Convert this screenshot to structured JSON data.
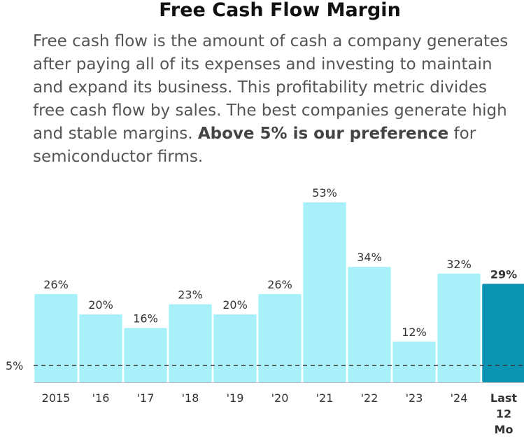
{
  "title": "Free Cash Flow Margin",
  "description": {
    "text_before": "Free cash flow is the amount of cash a company generates after paying all of its expenses and investing to maintain and expand its business. This profitability metric divides free cash flow by sales. The best companies generate high and stable margins. ",
    "bold_text": "Above 5% is our preference",
    "text_after": " for semiconductor firms."
  },
  "colors": {
    "bar": "#a8f0fa",
    "highlight_bar": "#0a93b3",
    "reference_line": "#333333",
    "reference_label": "#3a6e8c"
  },
  "chart_data": {
    "type": "bar",
    "title": "Free Cash Flow Margin",
    "categories": [
      "2015",
      "'16",
      "'17",
      "'18",
      "'19",
      "'20",
      "'21",
      "'22",
      "'23",
      "'24",
      "Last 12 Mo"
    ],
    "values": [
      26,
      20,
      16,
      23,
      20,
      26,
      53,
      34,
      12,
      32,
      29
    ],
    "value_labels": [
      "26%",
      "20%",
      "16%",
      "23%",
      "20%",
      "26%",
      "53%",
      "34%",
      "12%",
      "32%",
      "29%"
    ],
    "highlight_index": 10,
    "reference_line": {
      "value": 5,
      "label": "5%"
    },
    "xlabel": "",
    "ylabel": "",
    "ylim": [
      0,
      60
    ],
    "grid": false
  }
}
